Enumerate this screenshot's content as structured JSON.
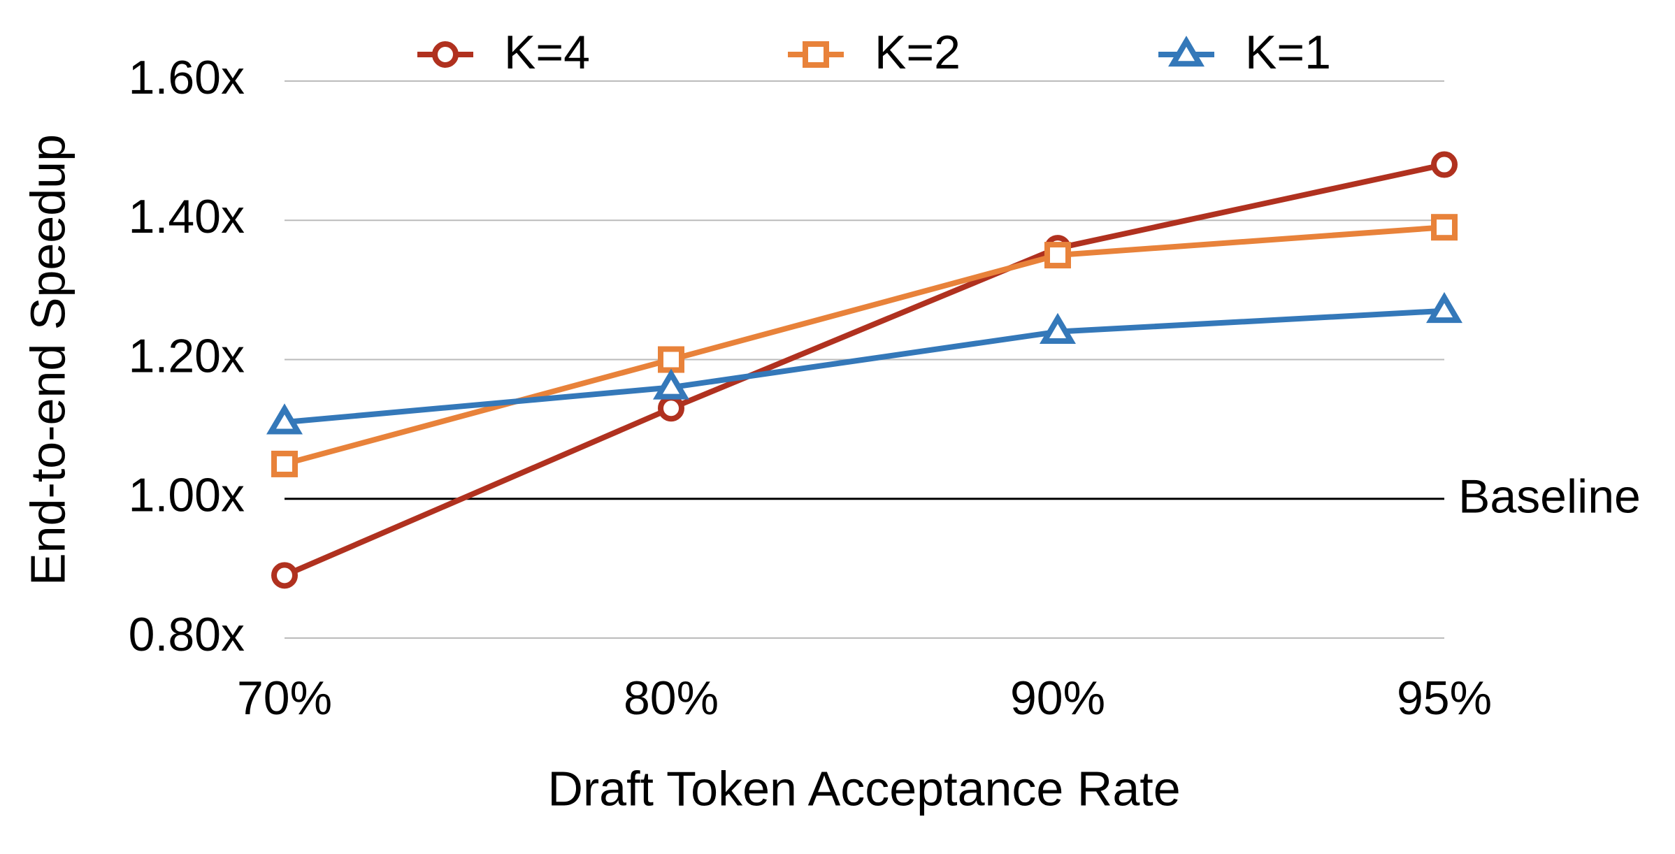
{
  "chart_data": {
    "type": "line",
    "x_label": "Draft Token Acceptance Rate",
    "y_label": "End-to-end Speedup",
    "categories": [
      "70%",
      "80%",
      "90%",
      "95%"
    ],
    "series": [
      {
        "name": "K=4",
        "color": "#b0311f",
        "marker": "circle",
        "values": [
          0.89,
          1.13,
          1.36,
          1.48
        ]
      },
      {
        "name": "K=2",
        "color": "#e8823a",
        "marker": "square",
        "values": [
          1.05,
          1.2,
          1.35,
          1.39
        ]
      },
      {
        "name": "K=1",
        "color": "#3478b9",
        "marker": "triangle",
        "values": [
          1.11,
          1.16,
          1.24,
          1.27
        ]
      }
    ],
    "ylim": [
      0.8,
      1.6
    ],
    "yticks": [
      {
        "value": 0.8,
        "label": "0.80x"
      },
      {
        "value": 1.0,
        "label": "1.00x"
      },
      {
        "value": 1.2,
        "label": "1.20x"
      },
      {
        "value": 1.4,
        "label": "1.40x"
      },
      {
        "value": 1.6,
        "label": "1.60x"
      }
    ],
    "baseline": {
      "value": 1,
      "label": "Baseline"
    },
    "grid": true,
    "legend": "top"
  }
}
